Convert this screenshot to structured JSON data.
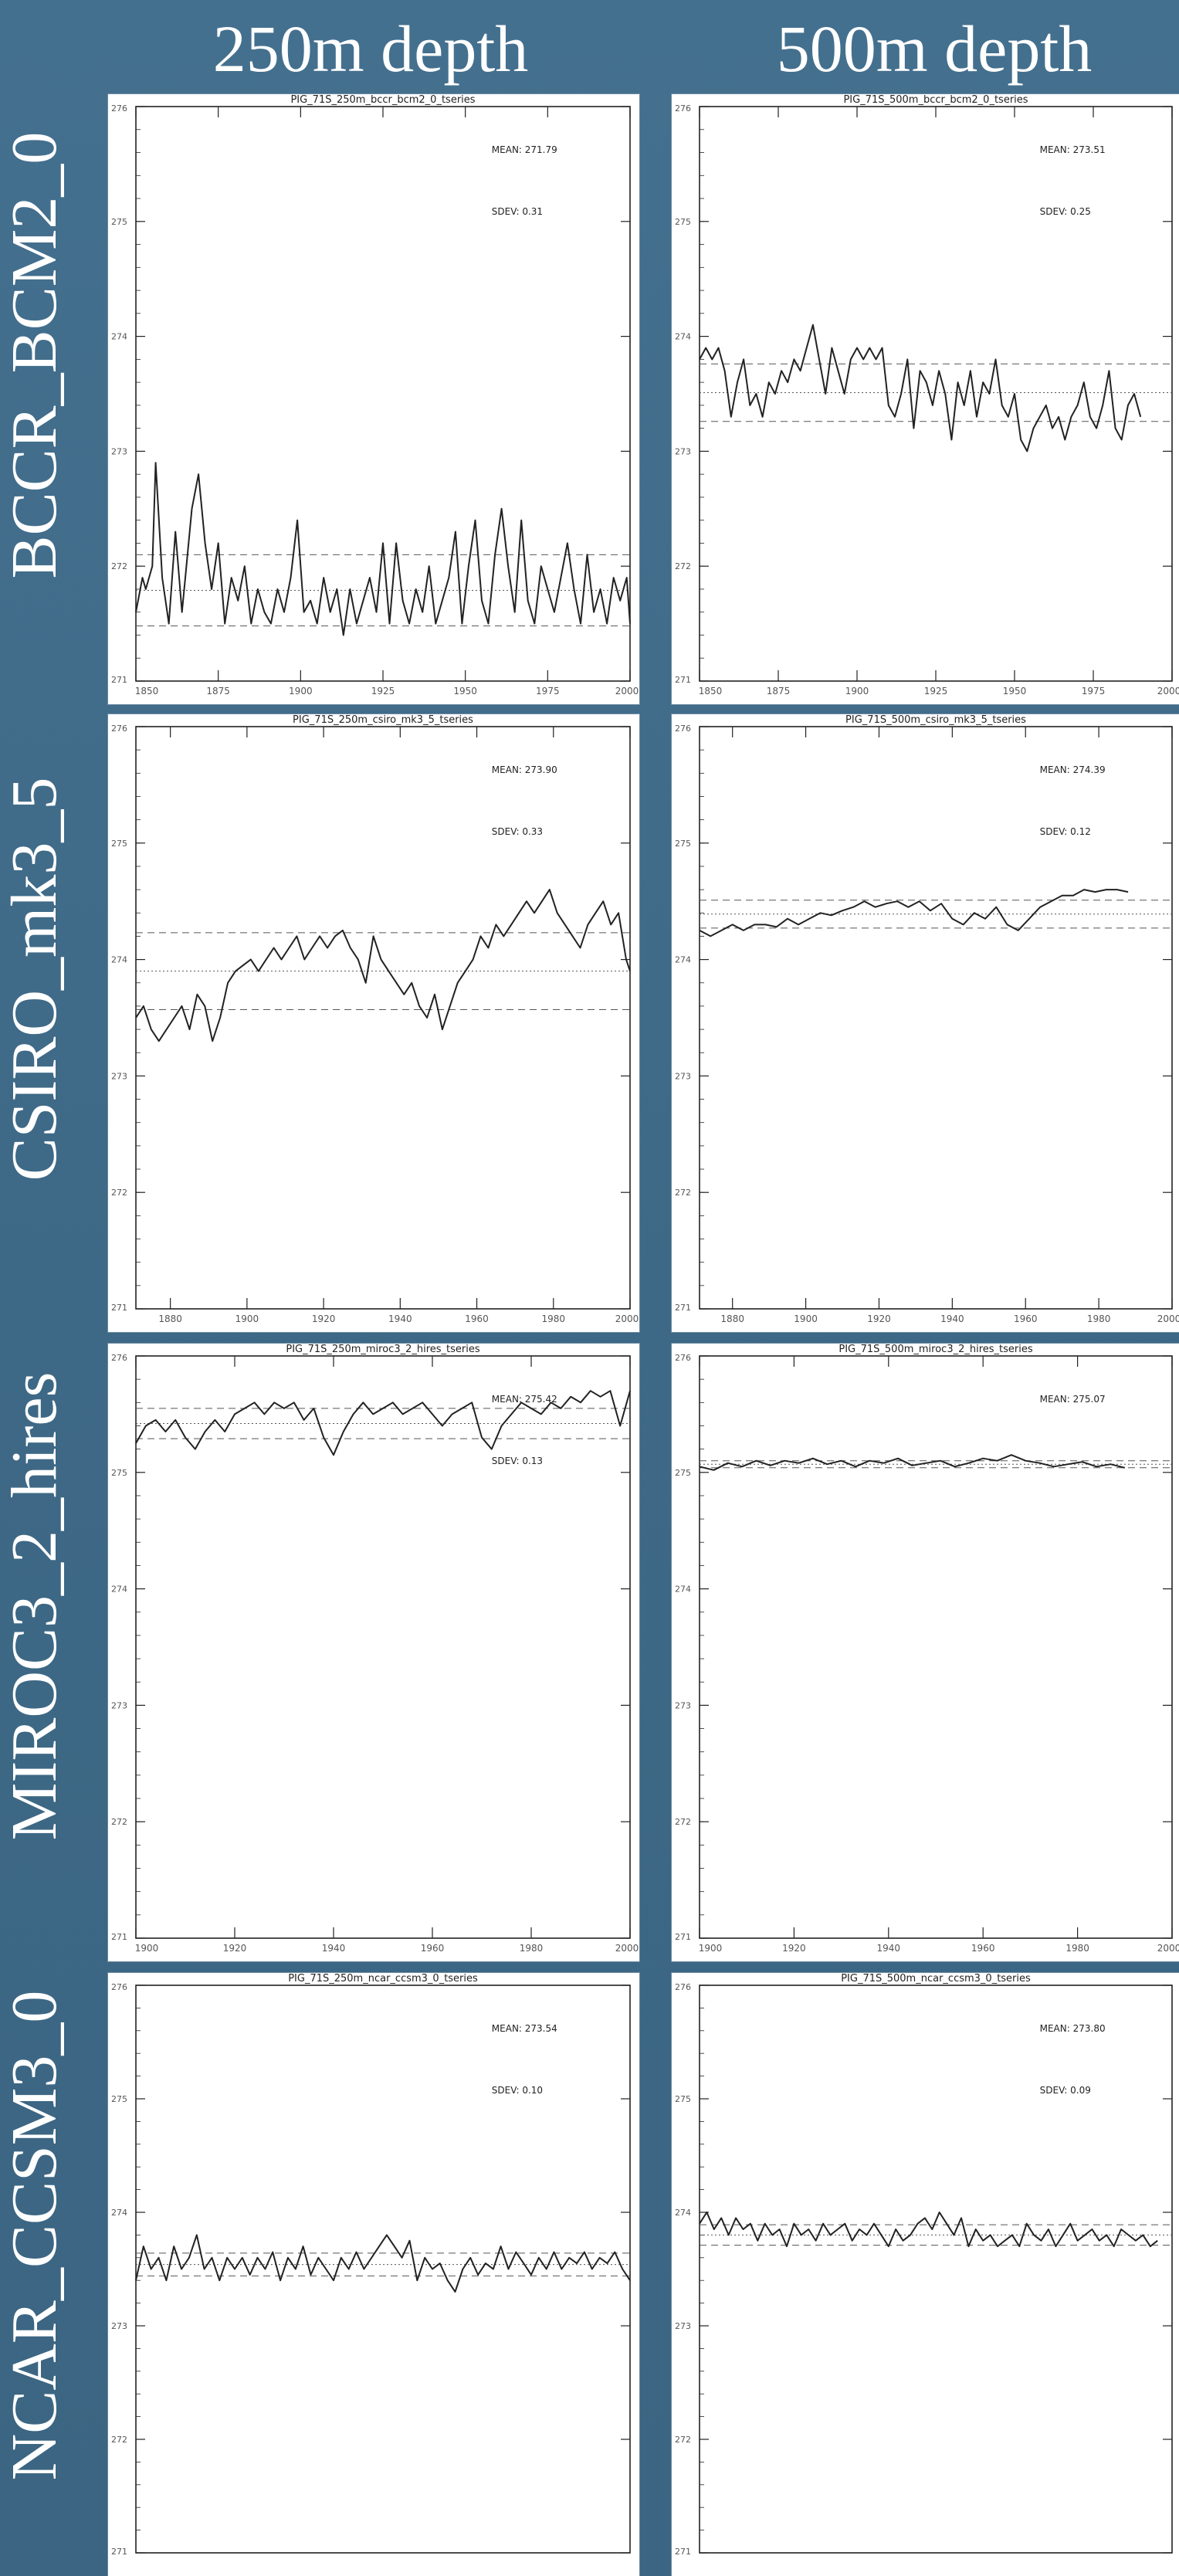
{
  "headers": {
    "col_250": "250m depth",
    "col_500": "500m depth"
  },
  "rows": [
    {
      "label": "BCCR_BCM2_0"
    },
    {
      "label": "CSIRO_mk3_5"
    },
    {
      "label": "MIROC3_2_hires"
    },
    {
      "label": "NCAR_CCSM3_0"
    }
  ],
  "colors": {
    "background": "#3f6a88",
    "panel": "#ffffff",
    "ink": "#222222"
  },
  "chart_data": [
    {
      "type": "line",
      "id": "bccr_250",
      "title": "PIG_71S_250m_bccr_bcm2_0_tseries",
      "mean_label": "MEAN: 271.79",
      "sdev_label": "SDEV: 0.31",
      "mean": 271.79,
      "sdev": 0.31,
      "xlim": [
        1850,
        2000
      ],
      "ylim": [
        271,
        276
      ],
      "xticks": [
        1850,
        1875,
        1900,
        1925,
        1950,
        1975,
        2000
      ],
      "yticks": [
        271,
        272,
        273,
        274,
        275,
        276
      ],
      "x": [
        1850,
        1852,
        1853,
        1855,
        1856,
        1858,
        1860,
        1862,
        1864,
        1865,
        1867,
        1869,
        1871,
        1873,
        1875,
        1877,
        1879,
        1881,
        1883,
        1885,
        1887,
        1889,
        1891,
        1893,
        1895,
        1897,
        1899,
        1901,
        1903,
        1905,
        1907,
        1909,
        1911,
        1913,
        1915,
        1917,
        1919,
        1921,
        1923,
        1925,
        1927,
        1929,
        1931,
        1933,
        1935,
        1937,
        1939,
        1941,
        1943,
        1945,
        1947,
        1949,
        1951,
        1953,
        1955,
        1957,
        1959,
        1961,
        1963,
        1965,
        1967,
        1969,
        1971,
        1973,
        1975,
        1977,
        1979,
        1981,
        1983,
        1985,
        1987,
        1989,
        1991,
        1993,
        1995,
        1997,
        1999,
        2000
      ],
      "y": [
        271.6,
        271.9,
        271.8,
        272.0,
        272.9,
        271.9,
        271.5,
        272.3,
        271.6,
        271.9,
        272.5,
        272.8,
        272.2,
        271.8,
        272.2,
        271.5,
        271.9,
        271.7,
        272.0,
        271.5,
        271.8,
        271.6,
        271.5,
        271.8,
        271.6,
        271.9,
        272.4,
        271.6,
        271.7,
        271.5,
        271.9,
        271.6,
        271.8,
        271.4,
        271.8,
        271.5,
        271.7,
        271.9,
        271.6,
        272.2,
        271.5,
        272.2,
        271.7,
        271.5,
        271.8,
        271.6,
        272.0,
        271.5,
        271.7,
        271.9,
        272.3,
        271.5,
        272.0,
        272.4,
        271.7,
        271.5,
        272.1,
        272.5,
        272.0,
        271.6,
        272.4,
        271.7,
        271.5,
        272.0,
        271.8,
        271.6,
        271.9,
        272.2,
        271.8,
        271.5,
        272.1,
        271.6,
        271.8,
        271.5,
        271.9,
        271.7,
        271.9,
        271.5
      ]
    },
    {
      "type": "line",
      "id": "bccr_500",
      "title": "PIG_71S_500m_bccr_bcm2_0_tseries",
      "mean_label": "MEAN: 273.51",
      "sdev_label": "SDEV: 0.25",
      "mean": 273.51,
      "sdev": 0.25,
      "xlim": [
        1850,
        2000
      ],
      "ylim": [
        271,
        276
      ],
      "xticks": [
        1850,
        1875,
        1900,
        1925,
        1950,
        1975,
        2000
      ],
      "yticks": [
        271,
        272,
        273,
        274,
        275,
        276
      ],
      "x": [
        1850,
        1852,
        1854,
        1856,
        1858,
        1860,
        1862,
        1864,
        1866,
        1868,
        1870,
        1872,
        1874,
        1876,
        1878,
        1880,
        1882,
        1884,
        1886,
        1888,
        1890,
        1892,
        1894,
        1896,
        1898,
        1900,
        1902,
        1904,
        1906,
        1908,
        1910,
        1912,
        1914,
        1916,
        1918,
        1920,
        1922,
        1924,
        1926,
        1928,
        1930,
        1932,
        1934,
        1936,
        1938,
        1940,
        1942,
        1944,
        1946,
        1948,
        1950,
        1952,
        1954,
        1956,
        1958,
        1960,
        1962,
        1964,
        1966,
        1968,
        1970,
        1972,
        1974,
        1976,
        1978,
        1980,
        1982,
        1984,
        1986,
        1988,
        1990
      ],
      "y": [
        273.8,
        273.9,
        273.8,
        273.9,
        273.7,
        273.3,
        273.6,
        273.8,
        273.4,
        273.5,
        273.3,
        273.6,
        273.5,
        273.7,
        273.6,
        273.8,
        273.7,
        273.9,
        274.1,
        273.8,
        273.5,
        273.9,
        273.7,
        273.5,
        273.8,
        273.9,
        273.8,
        273.9,
        273.8,
        273.9,
        273.4,
        273.3,
        273.5,
        273.8,
        273.2,
        273.7,
        273.6,
        273.4,
        273.7,
        273.5,
        273.1,
        273.6,
        273.4,
        273.7,
        273.3,
        273.6,
        273.5,
        273.8,
        273.4,
        273.3,
        273.5,
        273.1,
        273.0,
        273.2,
        273.3,
        273.4,
        273.2,
        273.3,
        273.1,
        273.3,
        273.4,
        273.6,
        273.3,
        273.2,
        273.4,
        273.7,
        273.2,
        273.1,
        273.4,
        273.5,
        273.3
      ]
    },
    {
      "type": "line",
      "id": "csiro_250",
      "title": "PIG_71S_250m_csiro_mk3_5_tseries",
      "mean_label": "MEAN: 273.90",
      "sdev_label": "SDEV: 0.33",
      "mean": 273.9,
      "sdev": 0.33,
      "xlim": [
        1871,
        2000
      ],
      "ylim": [
        271,
        276
      ],
      "xticks": [
        1880,
        1900,
        1920,
        1940,
        1960,
        1980,
        2000
      ],
      "yticks": [
        271,
        272,
        273,
        274,
        275,
        276
      ],
      "x": [
        1871,
        1873,
        1875,
        1877,
        1879,
        1881,
        1883,
        1885,
        1887,
        1889,
        1891,
        1893,
        1895,
        1897,
        1899,
        1901,
        1903,
        1905,
        1907,
        1909,
        1911,
        1913,
        1915,
        1917,
        1919,
        1921,
        1923,
        1925,
        1927,
        1929,
        1931,
        1933,
        1935,
        1937,
        1939,
        1941,
        1943,
        1945,
        1947,
        1949,
        1951,
        1953,
        1955,
        1957,
        1959,
        1961,
        1963,
        1965,
        1967,
        1969,
        1971,
        1973,
        1975,
        1977,
        1979,
        1981,
        1983,
        1985,
        1987,
        1989,
        1991,
        1993,
        1995,
        1997,
        1999,
        2000
      ],
      "y": [
        273.5,
        273.6,
        273.4,
        273.3,
        273.4,
        273.5,
        273.6,
        273.4,
        273.7,
        273.6,
        273.3,
        273.5,
        273.8,
        273.9,
        273.95,
        274.0,
        273.9,
        274.0,
        274.1,
        274.0,
        274.1,
        274.2,
        274.0,
        274.1,
        274.2,
        274.1,
        274.2,
        274.25,
        274.1,
        274.0,
        273.8,
        274.2,
        274.0,
        273.9,
        273.8,
        273.7,
        273.8,
        273.6,
        273.5,
        273.7,
        273.4,
        273.6,
        273.8,
        273.9,
        274.0,
        274.2,
        274.1,
        274.3,
        274.2,
        274.3,
        274.4,
        274.5,
        274.4,
        274.5,
        274.6,
        274.4,
        274.3,
        274.2,
        274.1,
        274.3,
        274.4,
        274.5,
        274.3,
        274.4,
        274.0,
        273.9
      ]
    },
    {
      "type": "line",
      "id": "csiro_500",
      "title": "PIG_71S_500m_csiro_mk3_5_tseries",
      "mean_label": "MEAN: 274.39",
      "sdev_label": "SDEV: 0.12",
      "mean": 274.39,
      "sdev": 0.12,
      "xlim": [
        1871,
        2000
      ],
      "ylim": [
        271,
        276
      ],
      "xticks": [
        1880,
        1900,
        1920,
        1940,
        1960,
        1980,
        2000
      ],
      "yticks": [
        271,
        272,
        273,
        274,
        275,
        276
      ],
      "x": [
        1871,
        1874,
        1877,
        1880,
        1883,
        1886,
        1889,
        1892,
        1895,
        1898,
        1901,
        1904,
        1907,
        1910,
        1913,
        1916,
        1919,
        1922,
        1925,
        1928,
        1931,
        1934,
        1937,
        1940,
        1943,
        1946,
        1949,
        1952,
        1955,
        1958,
        1961,
        1964,
        1967,
        1970,
        1973,
        1976,
        1979,
        1982,
        1985,
        1988
      ],
      "y": [
        274.25,
        274.2,
        274.25,
        274.3,
        274.25,
        274.3,
        274.3,
        274.28,
        274.35,
        274.3,
        274.35,
        274.4,
        274.38,
        274.42,
        274.45,
        274.5,
        274.45,
        274.48,
        274.5,
        274.45,
        274.5,
        274.42,
        274.48,
        274.35,
        274.3,
        274.4,
        274.35,
        274.45,
        274.3,
        274.25,
        274.35,
        274.45,
        274.5,
        274.55,
        274.55,
        274.6,
        274.58,
        274.6,
        274.6,
        274.58
      ]
    },
    {
      "type": "line",
      "id": "miroc_250",
      "title": "PIG_71S_250m_miroc3_2_hires_tseries",
      "mean_label": "MEAN: 275.42",
      "sdev_label": "SDEV: 0.13",
      "mean": 275.42,
      "sdev": 0.13,
      "xlim": [
        1900,
        2000
      ],
      "ylim": [
        271,
        276
      ],
      "xticks": [
        1900,
        1920,
        1940,
        1960,
        1980,
        2000
      ],
      "yticks": [
        271,
        272,
        273,
        274,
        275,
        276
      ],
      "x": [
        1900,
        1902,
        1904,
        1906,
        1908,
        1910,
        1912,
        1914,
        1916,
        1918,
        1920,
        1922,
        1924,
        1926,
        1928,
        1930,
        1932,
        1934,
        1936,
        1938,
        1940,
        1942,
        1944,
        1946,
        1948,
        1950,
        1952,
        1954,
        1956,
        1958,
        1960,
        1962,
        1964,
        1966,
        1968,
        1970,
        1972,
        1974,
        1976,
        1978,
        1980,
        1982,
        1984,
        1986,
        1988,
        1990,
        1992,
        1994,
        1996,
        1998,
        2000
      ],
      "y": [
        275.25,
        275.4,
        275.45,
        275.35,
        275.45,
        275.3,
        275.2,
        275.35,
        275.45,
        275.35,
        275.5,
        275.55,
        275.6,
        275.5,
        275.6,
        275.55,
        275.6,
        275.45,
        275.55,
        275.3,
        275.15,
        275.35,
        275.5,
        275.6,
        275.5,
        275.55,
        275.6,
        275.5,
        275.55,
        275.6,
        275.5,
        275.4,
        275.5,
        275.55,
        275.6,
        275.3,
        275.2,
        275.4,
        275.5,
        275.6,
        275.55,
        275.5,
        275.6,
        275.55,
        275.65,
        275.6,
        275.7,
        275.65,
        275.7,
        275.4,
        275.7
      ]
    },
    {
      "type": "line",
      "id": "miroc_500",
      "title": "PIG_71S_500m_miroc3_2_hires_tseries",
      "mean_label": "MEAN: 275.07",
      "sdev_label": "",
      "mean": 275.07,
      "sdev": 0.03,
      "xlim": [
        1900,
        2000
      ],
      "ylim": [
        271,
        276
      ],
      "xticks": [
        1900,
        1920,
        1940,
        1960,
        1980,
        2000
      ],
      "yticks": [
        271,
        272,
        273,
        274,
        275,
        276
      ],
      "x": [
        1900,
        1903,
        1906,
        1909,
        1912,
        1915,
        1918,
        1921,
        1924,
        1927,
        1930,
        1933,
        1936,
        1939,
        1942,
        1945,
        1948,
        1951,
        1954,
        1957,
        1960,
        1963,
        1966,
        1969,
        1972,
        1975,
        1978,
        1981,
        1984,
        1987,
        1990
      ],
      "y": [
        275.05,
        275.02,
        275.08,
        275.05,
        275.1,
        275.06,
        275.1,
        275.08,
        275.12,
        275.07,
        275.1,
        275.05,
        275.1,
        275.08,
        275.12,
        275.06,
        275.08,
        275.1,
        275.05,
        275.08,
        275.12,
        275.1,
        275.15,
        275.1,
        275.08,
        275.05,
        275.07,
        275.09,
        275.05,
        275.07,
        275.04
      ]
    },
    {
      "type": "line",
      "id": "ncar_250",
      "title": "PIG_71S_250m_ncar_ccsm3_0_tseries",
      "mean_label": "MEAN: 273.54",
      "sdev_label": "SDEV: 0.10",
      "mean": 273.54,
      "sdev": 0.1,
      "xlim": [
        1870,
        2000
      ],
      "ylim": [
        271,
        276
      ],
      "xticks": [],
      "yticks": [
        271,
        272,
        273,
        274,
        275,
        276
      ],
      "x": [
        1870,
        1872,
        1874,
        1876,
        1878,
        1880,
        1882,
        1884,
        1886,
        1888,
        1890,
        1892,
        1894,
        1896,
        1898,
        1900,
        1902,
        1904,
        1906,
        1908,
        1910,
        1912,
        1914,
        1916,
        1918,
        1920,
        1922,
        1924,
        1926,
        1928,
        1930,
        1932,
        1934,
        1936,
        1938,
        1940,
        1942,
        1944,
        1946,
        1948,
        1950,
        1952,
        1954,
        1956,
        1958,
        1960,
        1962,
        1964,
        1966,
        1968,
        1970,
        1972,
        1974,
        1976,
        1978,
        1980,
        1982,
        1984,
        1986,
        1988,
        1990,
        1992,
        1994,
        1996,
        1998,
        2000
      ],
      "y": [
        273.4,
        273.7,
        273.5,
        273.6,
        273.4,
        273.7,
        273.5,
        273.6,
        273.8,
        273.5,
        273.6,
        273.4,
        273.6,
        273.5,
        273.6,
        273.45,
        273.6,
        273.5,
        273.65,
        273.4,
        273.6,
        273.5,
        273.7,
        273.45,
        273.6,
        273.5,
        273.4,
        273.6,
        273.5,
        273.65,
        273.5,
        273.6,
        273.7,
        273.8,
        273.7,
        273.6,
        273.75,
        273.4,
        273.6,
        273.5,
        273.55,
        273.4,
        273.3,
        273.5,
        273.6,
        273.45,
        273.55,
        273.5,
        273.7,
        273.5,
        273.65,
        273.55,
        273.45,
        273.6,
        273.5,
        273.65,
        273.5,
        273.6,
        273.55,
        273.65,
        273.5,
        273.6,
        273.55,
        273.65,
        273.5,
        273.4
      ]
    },
    {
      "type": "line",
      "id": "ncar_500",
      "title": "PIG_71S_500m_ncar_ccsm3_0_tseries",
      "mean_label": "MEAN: 273.80",
      "sdev_label": "SDEV: 0.09",
      "mean": 273.8,
      "sdev": 0.09,
      "xlim": [
        1870,
        2000
      ],
      "ylim": [
        271,
        276
      ],
      "xticks": [],
      "yticks": [
        271,
        272,
        273,
        274,
        275,
        276
      ],
      "x": [
        1870,
        1872,
        1874,
        1876,
        1878,
        1880,
        1882,
        1884,
        1886,
        1888,
        1890,
        1892,
        1894,
        1896,
        1898,
        1900,
        1902,
        1904,
        1906,
        1908,
        1910,
        1912,
        1914,
        1916,
        1918,
        1920,
        1922,
        1924,
        1926,
        1928,
        1930,
        1932,
        1934,
        1936,
        1938,
        1940,
        1942,
        1944,
        1946,
        1948,
        1950,
        1952,
        1954,
        1956,
        1958,
        1960,
        1962,
        1964,
        1966,
        1968,
        1970,
        1972,
        1974,
        1976,
        1978,
        1980,
        1982,
        1984,
        1986,
        1988,
        1990,
        1992,
        1994,
        1996
      ],
      "y": [
        273.9,
        274.0,
        273.85,
        273.95,
        273.8,
        273.95,
        273.85,
        273.9,
        273.75,
        273.9,
        273.8,
        273.85,
        273.7,
        273.9,
        273.8,
        273.85,
        273.75,
        273.9,
        273.8,
        273.85,
        273.9,
        273.75,
        273.85,
        273.8,
        273.9,
        273.8,
        273.7,
        273.85,
        273.75,
        273.8,
        273.9,
        273.95,
        273.85,
        274.0,
        273.9,
        273.8,
        273.95,
        273.7,
        273.85,
        273.75,
        273.8,
        273.7,
        273.75,
        273.8,
        273.7,
        273.9,
        273.8,
        273.75,
        273.85,
        273.7,
        273.8,
        273.9,
        273.75,
        273.8,
        273.85,
        273.75,
        273.8,
        273.7,
        273.85,
        273.8,
        273.75,
        273.8,
        273.7,
        273.75
      ]
    }
  ]
}
